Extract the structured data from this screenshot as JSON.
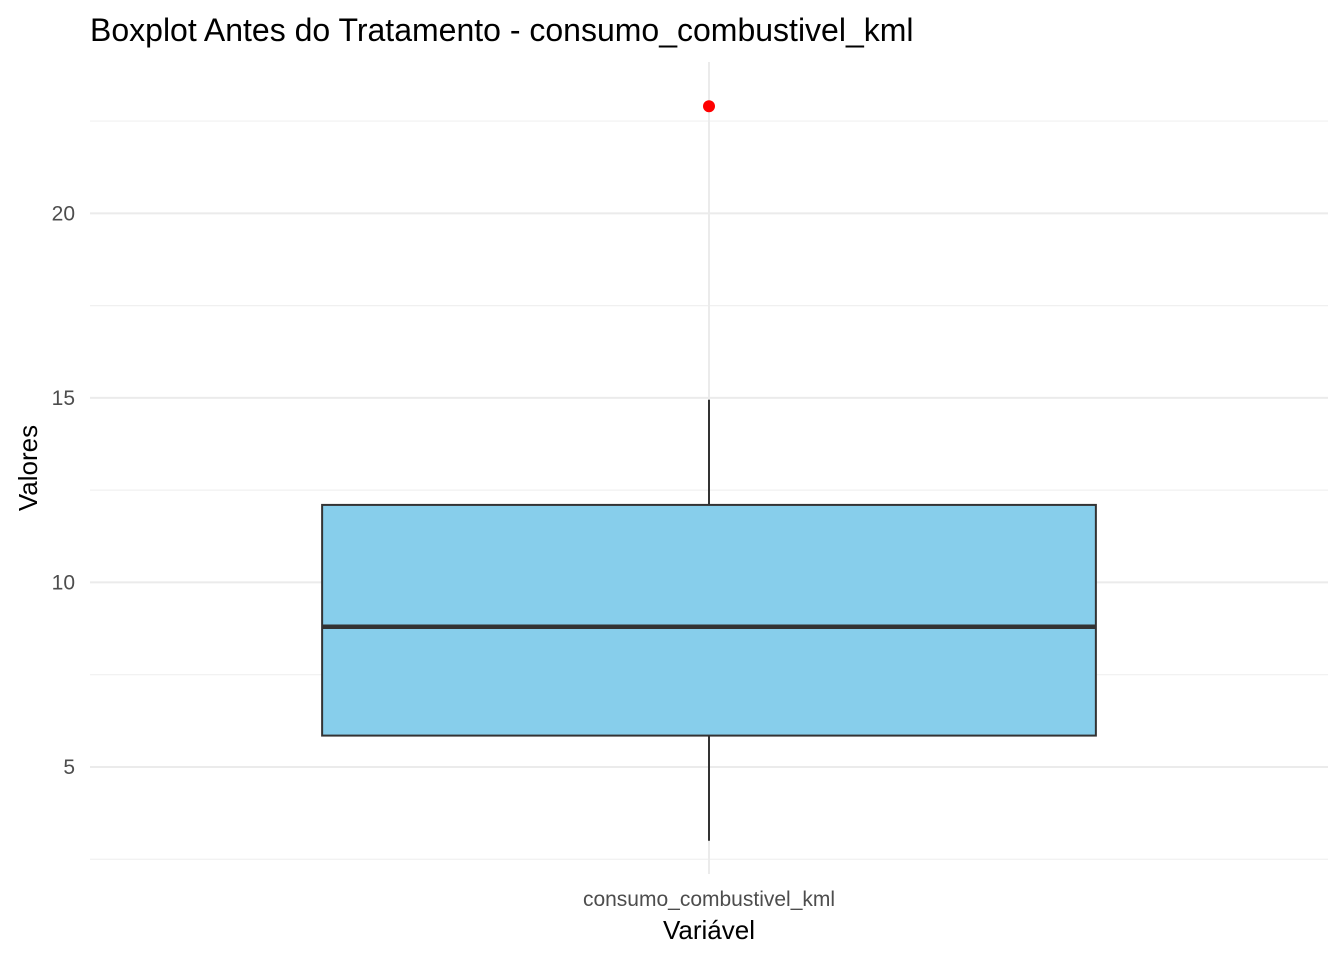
{
  "chart_data": {
    "type": "boxplot",
    "title": "Boxplot Antes do Tratamento - consumo_combustivel_kml",
    "xlabel": "Variável",
    "ylabel": "Valores",
    "categories": [
      "consumo_combustivel_kml"
    ],
    "ylim": [
      2.1,
      24.1
    ],
    "y_ticks": [
      5,
      10,
      15,
      20
    ],
    "y_tick_labels": [
      "5",
      "10",
      "15",
      "20"
    ],
    "grid": true,
    "boxes": [
      {
        "category": "consumo_combustivel_kml",
        "whisker_low": 3.0,
        "q1": 5.85,
        "median": 8.8,
        "q3": 12.1,
        "whisker_high": 14.95,
        "outliers": [
          22.9
        ]
      }
    ],
    "colors": {
      "box_fill": "#87CEEB",
      "box_stroke": "#333333",
      "median_line": "#333333",
      "whisker": "#333333",
      "outlier": "#FF0000"
    }
  }
}
